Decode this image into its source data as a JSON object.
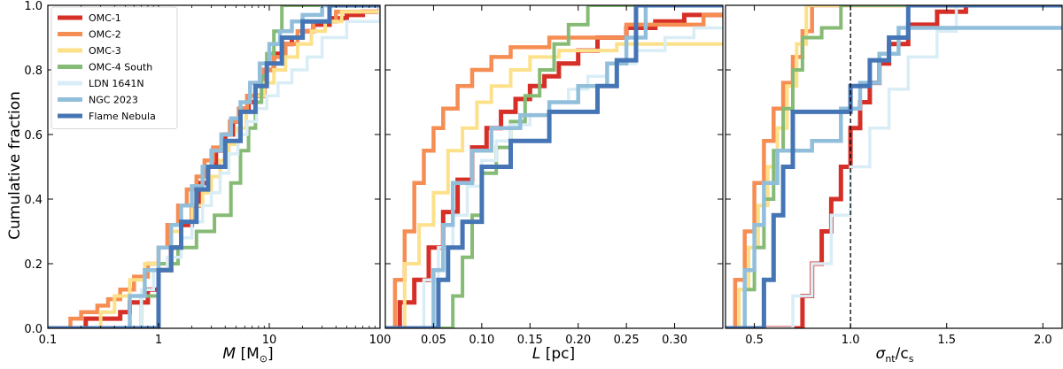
{
  "colors": {
    "OMC-1": "#d62f27",
    "OMC-2": "#f68d53",
    "OMC-3": "#fde18a",
    "OMC-4 South": "#86bb75",
    "LDN 1641N": "#d9edf6",
    "NGC 2023": "#91bfdb",
    "Flame Nebula": "#4575b4"
  },
  "chart_data": [
    {
      "type": "step",
      "xlabel_var": "M",
      "xlabel_unit": "[M",
      "xlabel_sub": "⊙",
      "xlabel_close": "]",
      "ylabel": "Cumulative fraction",
      "xscale": "log",
      "xlim": [
        0.1,
        100
      ],
      "ylim": [
        0,
        1.0
      ],
      "xticks": [
        0.1,
        1,
        10,
        100
      ],
      "xtick_labels": [
        "0.1",
        "1",
        "10",
        "100"
      ],
      "yticks": [
        0.0,
        0.2,
        0.4,
        0.6,
        0.8,
        1.0
      ],
      "ytick_labels": [
        "0.0",
        "0.2",
        "0.4",
        "0.6",
        "0.8",
        "1.0"
      ],
      "legend": {
        "placement": "top-left",
        "entries": [
          "OMC-1",
          "OMC-2",
          "OMC-3",
          "OMC-4 South",
          "LDN 1641N",
          "NGC 2023",
          "Flame Nebula"
        ]
      },
      "series": [
        {
          "name": "OMC-1",
          "x": [
            0.1,
            0.22,
            0.45,
            0.55,
            0.8,
            1.0,
            1.3,
            1.6,
            2.0,
            2.4,
            2.8,
            3.3,
            4.0,
            4.7,
            5.5,
            6.5,
            7.5,
            9.0,
            11,
            13,
            16,
            20,
            25,
            35,
            50,
            70,
            100
          ],
          "y": [
            0.0,
            0.03,
            0.05,
            0.08,
            0.12,
            0.18,
            0.25,
            0.32,
            0.38,
            0.45,
            0.5,
            0.55,
            0.6,
            0.64,
            0.68,
            0.7,
            0.72,
            0.8,
            0.85,
            0.88,
            0.9,
            0.92,
            0.94,
            0.96,
            0.97,
            0.98,
            1.0
          ]
        },
        {
          "name": "OMC-2",
          "x": [
            0.1,
            0.16,
            0.2,
            0.28,
            0.35,
            0.45,
            0.6,
            0.8,
            1.0,
            1.2,
            1.5,
            1.8,
            2.2,
            2.6,
            3.1,
            3.7,
            4.4,
            5.3,
            6.3,
            7.5,
            9.0,
            11,
            14,
            18,
            25,
            40,
            100
          ],
          "y": [
            0.0,
            0.03,
            0.05,
            0.07,
            0.09,
            0.12,
            0.16,
            0.2,
            0.25,
            0.32,
            0.38,
            0.43,
            0.47,
            0.52,
            0.56,
            0.6,
            0.64,
            0.68,
            0.72,
            0.76,
            0.8,
            0.84,
            0.88,
            0.92,
            0.95,
            0.98,
            1.0
          ]
        },
        {
          "name": "OMC-3",
          "x": [
            0.1,
            0.3,
            0.4,
            0.55,
            0.75,
            1.0,
            1.3,
            1.6,
            2.0,
            2.5,
            3.0,
            3.6,
            4.3,
            5.2,
            6.2,
            7.5,
            9.0,
            11,
            14,
            18,
            24,
            32,
            45,
            100
          ],
          "y": [
            0.0,
            0.05,
            0.1,
            0.15,
            0.2,
            0.25,
            0.3,
            0.33,
            0.38,
            0.42,
            0.47,
            0.52,
            0.57,
            0.62,
            0.67,
            0.72,
            0.76,
            0.8,
            0.84,
            0.88,
            0.92,
            0.95,
            0.98,
            1.0
          ]
        },
        {
          "name": "OMC-4 South",
          "x": [
            0.1,
            0.7,
            1.0,
            1.5,
            2.2,
            3.2,
            4.5,
            5.5,
            6.5,
            7.5,
            8.5,
            9.5,
            11,
            13,
            100
          ],
          "y": [
            0.0,
            0.1,
            0.2,
            0.25,
            0.3,
            0.35,
            0.45,
            0.55,
            0.62,
            0.7,
            0.78,
            0.85,
            0.92,
            1.0,
            1.0
          ]
        },
        {
          "name": "LDN 1641N",
          "x": [
            0.1,
            0.7,
            0.9,
            1.2,
            1.6,
            2.0,
            2.5,
            3.0,
            3.6,
            4.3,
            5.2,
            6.3,
            7.7,
            9.5,
            12,
            16,
            22,
            30,
            50,
            100
          ],
          "y": [
            0.0,
            0.12,
            0.18,
            0.22,
            0.28,
            0.33,
            0.38,
            0.42,
            0.48,
            0.54,
            0.6,
            0.64,
            0.68,
            0.72,
            0.76,
            0.8,
            0.84,
            0.9,
            0.95,
            1.0
          ]
        },
        {
          "name": "NGC 2023",
          "x": [
            0.1,
            0.55,
            0.75,
            1.0,
            1.3,
            1.6,
            2.0,
            2.5,
            3.0,
            3.7,
            4.5,
            5.5,
            6.7,
            8.2,
            10,
            12.5,
            16,
            20,
            30,
            100
          ],
          "y": [
            0.0,
            0.1,
            0.18,
            0.25,
            0.32,
            0.38,
            0.44,
            0.5,
            0.55,
            0.6,
            0.65,
            0.7,
            0.76,
            0.82,
            0.88,
            0.92,
            0.95,
            0.97,
            1.0,
            1.0
          ]
        },
        {
          "name": "Flame Nebula",
          "x": [
            0.1,
            1.0,
            1.3,
            1.6,
            2.2,
            2.8,
            4.0,
            5.5,
            7.5,
            9.5,
            13,
            20,
            35,
            100
          ],
          "y": [
            0.0,
            0.18,
            0.25,
            0.33,
            0.43,
            0.5,
            0.58,
            0.67,
            0.75,
            0.82,
            0.9,
            0.95,
            1.0,
            1.0
          ]
        }
      ]
    },
    {
      "type": "step",
      "xlabel_var": "L",
      "xlabel_unit": "[pc]",
      "xscale": "linear",
      "xlim": [
        0.0,
        0.35
      ],
      "ylim": [
        0,
        1.0
      ],
      "xticks": [
        0.05,
        0.1,
        0.15,
        0.2,
        0.25,
        0.3
      ],
      "xtick_labels": [
        "0.05",
        "0.10",
        "0.15",
        "0.20",
        "0.25",
        "0.30"
      ],
      "series": [
        {
          "name": "OMC-1",
          "x": [
            0.0,
            0.015,
            0.03,
            0.045,
            0.06,
            0.075,
            0.09,
            0.105,
            0.12,
            0.135,
            0.15,
            0.165,
            0.18,
            0.2,
            0.22,
            0.25,
            0.28,
            0.31,
            0.35
          ],
          "y": [
            0.0,
            0.08,
            0.15,
            0.25,
            0.36,
            0.46,
            0.56,
            0.62,
            0.67,
            0.71,
            0.75,
            0.78,
            0.82,
            0.86,
            0.9,
            0.93,
            0.95,
            0.97,
            0.97
          ]
        },
        {
          "name": "OMC-2",
          "x": [
            0.0,
            0.01,
            0.02,
            0.03,
            0.04,
            0.05,
            0.06,
            0.075,
            0.09,
            0.11,
            0.13,
            0.17,
            0.25,
            0.33,
            0.35
          ],
          "y": [
            0.0,
            0.15,
            0.3,
            0.45,
            0.55,
            0.62,
            0.68,
            0.75,
            0.8,
            0.84,
            0.87,
            0.9,
            0.94,
            0.97,
            0.97
          ]
        },
        {
          "name": "OMC-3",
          "x": [
            0.0,
            0.02,
            0.035,
            0.05,
            0.065,
            0.08,
            0.095,
            0.11,
            0.13,
            0.15,
            0.18,
            0.24,
            0.35
          ],
          "y": [
            0.0,
            0.2,
            0.32,
            0.42,
            0.55,
            0.62,
            0.7,
            0.75,
            0.8,
            0.84,
            0.86,
            0.88,
            0.88
          ]
        },
        {
          "name": "OMC-4 South",
          "x": [
            0.0,
            0.07,
            0.08,
            0.09,
            0.1,
            0.115,
            0.13,
            0.145,
            0.16,
            0.175,
            0.19,
            0.21,
            0.35
          ],
          "y": [
            0.0,
            0.1,
            0.22,
            0.35,
            0.48,
            0.56,
            0.64,
            0.72,
            0.8,
            0.88,
            0.94,
            1.0,
            1.0
          ]
        },
        {
          "name": "LDN 1641N",
          "x": [
            0.0,
            0.04,
            0.055,
            0.07,
            0.085,
            0.1,
            0.115,
            0.13,
            0.15,
            0.17,
            0.19,
            0.21,
            0.23,
            0.26,
            0.29,
            0.32,
            0.35
          ],
          "y": [
            0.0,
            0.15,
            0.25,
            0.35,
            0.44,
            0.52,
            0.58,
            0.63,
            0.66,
            0.7,
            0.74,
            0.78,
            0.82,
            0.86,
            0.9,
            0.93,
            0.93
          ]
        },
        {
          "name": "NGC 2023",
          "x": [
            0.0,
            0.05,
            0.06,
            0.07,
            0.09,
            0.11,
            0.14,
            0.17,
            0.2,
            0.23,
            0.25,
            0.27,
            0.35
          ],
          "y": [
            0.0,
            0.18,
            0.32,
            0.45,
            0.55,
            0.62,
            0.66,
            0.7,
            0.75,
            0.82,
            0.9,
            1.0,
            1.0
          ]
        },
        {
          "name": "Flame Nebula",
          "x": [
            0.0,
            0.055,
            0.065,
            0.08,
            0.1,
            0.13,
            0.17,
            0.2,
            0.22,
            0.24,
            0.26,
            0.35
          ],
          "y": [
            0.0,
            0.15,
            0.25,
            0.33,
            0.5,
            0.58,
            0.67,
            0.67,
            0.75,
            0.83,
            1.0,
            1.0
          ]
        }
      ]
    },
    {
      "type": "step",
      "xlabel_var": "σ",
      "xlabel_sub": "nt",
      "xlabel_rest": "/c",
      "xlabel_sub2": "s",
      "xscale": "linear",
      "xlim": [
        0.35,
        2.1
      ],
      "ylim": [
        0,
        1.0
      ],
      "xticks": [
        0.5,
        1.0,
        1.5,
        2.0
      ],
      "xtick_labels": [
        "0.5",
        "1.0",
        "1.5",
        "2.0"
      ],
      "vline_x": 1.0,
      "series": [
        {
          "name": "OMC-1",
          "x": [
            0.35,
            0.75,
            0.8,
            0.85,
            0.9,
            0.95,
            1.0,
            1.05,
            1.1,
            1.15,
            1.2,
            1.3,
            1.45,
            1.6,
            2.1
          ],
          "y": [
            0.0,
            0.1,
            0.2,
            0.3,
            0.4,
            0.5,
            0.62,
            0.7,
            0.76,
            0.82,
            0.88,
            0.94,
            0.98,
            1.0,
            1.0
          ]
        },
        {
          "name": "OMC-2",
          "x": [
            0.35,
            0.4,
            0.45,
            0.5,
            0.55,
            0.6,
            0.65,
            0.7,
            0.75,
            0.8,
            2.1
          ],
          "y": [
            0.0,
            0.15,
            0.3,
            0.45,
            0.58,
            0.68,
            0.76,
            0.84,
            0.92,
            1.0,
            1.0
          ]
        },
        {
          "name": "OMC-3",
          "x": [
            0.35,
            0.42,
            0.47,
            0.52,
            0.57,
            0.62,
            0.67,
            0.72,
            0.77,
            2.1
          ],
          "y": [
            0.0,
            0.12,
            0.25,
            0.38,
            0.5,
            0.62,
            0.75,
            0.88,
            1.0,
            1.0
          ]
        },
        {
          "name": "OMC-4 South",
          "x": [
            0.35,
            0.45,
            0.5,
            0.55,
            0.6,
            0.65,
            0.7,
            0.75,
            0.85,
            0.95,
            2.1
          ],
          "y": [
            0.0,
            0.12,
            0.25,
            0.4,
            0.55,
            0.68,
            0.8,
            0.9,
            0.93,
            1.0,
            1.0
          ]
        },
        {
          "name": "LDN 1641N",
          "x": [
            0.35,
            0.7,
            0.8,
            0.9,
            1.0,
            1.1,
            1.2,
            1.3,
            1.45,
            1.55,
            2.1
          ],
          "y": [
            0.0,
            0.1,
            0.2,
            0.35,
            0.5,
            0.62,
            0.74,
            0.84,
            0.92,
            1.0,
            1.0
          ]
        },
        {
          "name": "NGC 2023",
          "x": [
            0.35,
            0.45,
            0.5,
            0.55,
            0.62,
            0.8,
            0.95,
            1.05,
            1.15,
            1.25,
            2.1
          ],
          "y": [
            0.0,
            0.18,
            0.32,
            0.45,
            0.55,
            0.58,
            0.68,
            0.76,
            0.85,
            0.93,
            0.93
          ]
        },
        {
          "name": "Flame Nebula",
          "x": [
            0.35,
            0.55,
            0.6,
            0.65,
            0.7,
            0.9,
            1.0,
            1.1,
            1.2,
            1.3,
            2.1
          ],
          "y": [
            0.0,
            0.15,
            0.35,
            0.5,
            0.67,
            0.67,
            0.75,
            0.83,
            0.9,
            1.0,
            1.0
          ]
        }
      ]
    }
  ]
}
